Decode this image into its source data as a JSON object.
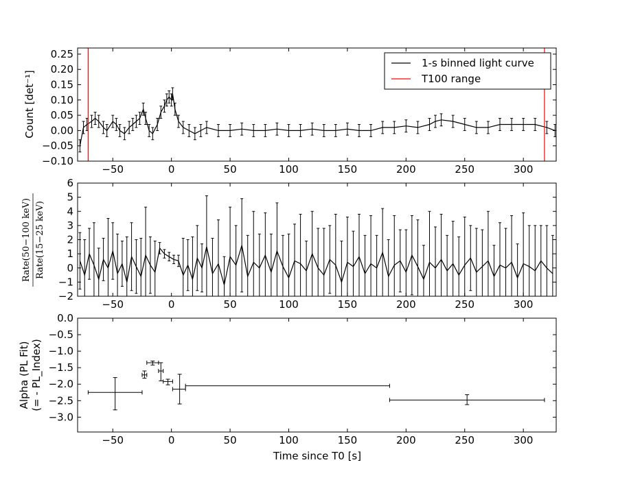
{
  "figure": {
    "xlabel": "Time since T0 [s]"
  },
  "chart_data": [
    {
      "type": "line",
      "panel": "light-curve",
      "ylabel": "Count [det⁻¹]",
      "xlim": [
        -80,
        328
      ],
      "ylim": [
        -0.1,
        0.27
      ],
      "xticks": [
        "−50",
        "0",
        "50",
        "100",
        "150",
        "200",
        "250",
        "300"
      ],
      "yticks": [
        "−0.10",
        "−0.05",
        "0.00",
        "0.05",
        "0.10",
        "0.15",
        "0.20",
        "0.25"
      ],
      "legend": {
        "placement": "top-right",
        "entries": [
          "1-s binned light curve",
          "T100 range"
        ]
      },
      "series": [
        {
          "name": "1-s binned light curve",
          "color": "#000000",
          "x": [
            -78,
            -75,
            -72,
            -68,
            -65,
            -62,
            -58,
            -55,
            -50,
            -47,
            -44,
            -40,
            -36,
            -33,
            -30,
            -27,
            -24,
            -22,
            -19,
            -16,
            -12,
            -9,
            -6,
            -4,
            -2,
            0,
            1,
            3,
            6,
            10,
            15,
            20,
            25,
            30,
            40,
            50,
            60,
            70,
            80,
            90,
            100,
            110,
            120,
            130,
            140,
            150,
            160,
            170,
            180,
            190,
            200,
            210,
            220,
            225,
            230,
            240,
            250,
            260,
            270,
            280,
            290,
            300,
            310,
            320,
            327
          ],
          "y": [
            -0.05,
            0.01,
            0.02,
            0.03,
            0.04,
            0.03,
            0.01,
            0.0,
            0.03,
            0.02,
            0.0,
            -0.01,
            0.01,
            0.02,
            0.03,
            0.04,
            0.07,
            0.04,
            0.0,
            -0.01,
            0.02,
            0.06,
            0.08,
            0.1,
            0.11,
            0.1,
            0.12,
            0.07,
            0.03,
            0.01,
            0.0,
            -0.01,
            0.0,
            0.01,
            0.0,
            0.0,
            0.005,
            0.0,
            0.0,
            0.005,
            0.0,
            0.0,
            0.005,
            0.0,
            0.0,
            0.005,
            0.0,
            0.0,
            0.01,
            0.01,
            0.015,
            0.01,
            0.02,
            0.03,
            0.035,
            0.03,
            0.02,
            0.01,
            0.01,
            0.02,
            0.02,
            0.02,
            0.02,
            0.01,
            0.0
          ],
          "yerr": 0.02
        },
        {
          "name": "T100 range",
          "color": "#ff0000",
          "vlines": [
            -71,
            318
          ]
        }
      ]
    },
    {
      "type": "line",
      "panel": "hardness-ratio",
      "ylabel": "Rate(50−100 keV) / Rate(15−25 keV)",
      "ylabel_num": "Rate(50−100 keV)",
      "ylabel_den": "Rate(15−25 keV)",
      "xlim": [
        -80,
        328
      ],
      "ylim": [
        -2,
        6
      ],
      "xticks": [
        "−50",
        "0",
        "50",
        "100",
        "150",
        "200",
        "250",
        "300"
      ],
      "yticks": [
        "−2",
        "−1",
        "0",
        "1",
        "2",
        "3",
        "4",
        "5",
        "6"
      ],
      "series": [
        {
          "color": "#000000",
          "x": [
            -78,
            -74,
            -70,
            -66,
            -62,
            -58,
            -54,
            -50,
            -46,
            -42,
            -38,
            -34,
            -30,
            -26,
            -22,
            -18,
            -14,
            -10,
            -6,
            -2,
            2,
            6,
            10,
            14,
            18,
            22,
            26,
            30,
            35,
            40,
            45,
            50,
            55,
            60,
            65,
            70,
            75,
            80,
            85,
            90,
            95,
            100,
            105,
            110,
            115,
            120,
            125,
            130,
            135,
            140,
            145,
            150,
            155,
            160,
            165,
            170,
            175,
            180,
            185,
            190,
            195,
            200,
            205,
            210,
            215,
            220,
            225,
            230,
            235,
            240,
            245,
            250,
            255,
            260,
            265,
            270,
            275,
            280,
            285,
            290,
            295,
            300,
            305,
            310,
            315,
            320,
            325
          ],
          "y": [
            0.5,
            -0.5,
            1.0,
            0.2,
            -0.8,
            0.6,
            0.0,
            1.2,
            -0.4,
            0.3,
            -1.0,
            0.8,
            0.1,
            -0.6,
            0.9,
            0.2,
            -0.3,
            1.4,
            1.0,
            0.8,
            0.6,
            0.5,
            -0.5,
            0.2,
            -0.8,
            0.7,
            0.0,
            1.5,
            -0.4,
            0.3,
            -1.2,
            0.8,
            0.2,
            1.6,
            -0.6,
            0.4,
            0.0,
            0.9,
            -0.3,
            1.2,
            0.1,
            -0.7,
            0.5,
            0.3,
            -0.2,
            1.0,
            0.0,
            -0.5,
            0.6,
            0.2,
            -1.0,
            0.4,
            0.1,
            0.8,
            -0.4,
            0.3,
            0.0,
            1.1,
            -0.6,
            0.2,
            0.5,
            -0.3,
            0.9,
            0.1,
            -0.8,
            0.4,
            0.0,
            0.6,
            -0.2,
            0.3,
            -0.5,
            0.2,
            0.7,
            -0.3,
            0.1,
            0.5,
            -0.6,
            0.2,
            0.0,
            0.4,
            -0.7,
            0.3,
            0.1,
            -0.2,
            0.5,
            0.0,
            -0.4
          ],
          "yerr": [
            2.0,
            2.5,
            1.8,
            3.0,
            2.2,
            1.5,
            3.5,
            2.0,
            2.8,
            1.6,
            3.2,
            2.4,
            1.9,
            2.7,
            3.4,
            2.0,
            2.2,
            0.4,
            0.3,
            0.3,
            0.3,
            0.4,
            2.6,
            1.8,
            3.0,
            2.3,
            1.7,
            3.6,
            2.5,
            3.1,
            2.0,
            3.5,
            2.8,
            3.3,
            2.9,
            3.6,
            2.4,
            3.0,
            2.7,
            3.4,
            2.2,
            3.1,
            2.6,
            3.5,
            2.1,
            3.0,
            2.8,
            3.3,
            2.4,
            3.6,
            2.9,
            3.2,
            2.5,
            3.0,
            2.7,
            3.4,
            2.3,
            3.1,
            2.6,
            3.5,
            2.2,
            3.0,
            2.8,
            3.3,
            2.4,
            3.6,
            2.9,
            3.2,
            2.5,
            3.0,
            2.7,
            3.4,
            2.3,
            3.1,
            2.6,
            3.5,
            2.2,
            3.0,
            2.8,
            3.3,
            2.4,
            3.6,
            2.9,
            3.2,
            2.5,
            3.0,
            2.7
          ]
        }
      ]
    },
    {
      "type": "scatter",
      "panel": "spectral-index",
      "ylabel_line1": "Alpha (PL Fit)",
      "ylabel_line2": "(= - PL_Index)",
      "xlabel": "Time since T0 [s]",
      "xlim": [
        -80,
        328
      ],
      "ylim": [
        -3.45,
        0.0
      ],
      "xticks": [
        "−50",
        "0",
        "50",
        "100",
        "150",
        "200",
        "250",
        "300"
      ],
      "yticks": [
        "−3.0",
        "−2.5",
        "−2.0",
        "−1.5",
        "−1.0",
        "−0.5",
        "0.0"
      ],
      "series": [
        {
          "color": "#000000",
          "points": [
            {
              "x": -48,
              "xlo": -71,
              "xhi": -25,
              "y": -2.25,
              "ylo": -2.78,
              "yhi": -1.8
            },
            {
              "x": -23,
              "xlo": -25,
              "xhi": -21,
              "y": -1.72,
              "ylo": -1.82,
              "yhi": -1.6
            },
            {
              "x": -16,
              "xlo": -21,
              "xhi": -11,
              "y": -1.35,
              "ylo": -1.42,
              "yhi": -1.3
            },
            {
              "x": -9,
              "xlo": -11,
              "xhi": -7,
              "y": -1.6,
              "ylo": -1.9,
              "yhi": -1.35
            },
            {
              "x": -3,
              "xlo": -7,
              "xhi": 1,
              "y": -1.92,
              "ylo": -2.02,
              "yhi": -1.85
            },
            {
              "x": 7,
              "xlo": 1,
              "xhi": 12,
              "y": -2.15,
              "ylo": -2.6,
              "yhi": -1.7
            },
            {
              "x": 99,
              "xlo": 12,
              "xhi": 186,
              "y": -2.05,
              "ylo": -2.05,
              "yhi": -2.05
            },
            {
              "x": 252,
              "xlo": 186,
              "xhi": 318,
              "y": -2.48,
              "ylo": -2.62,
              "yhi": -2.32
            }
          ]
        }
      ]
    }
  ]
}
